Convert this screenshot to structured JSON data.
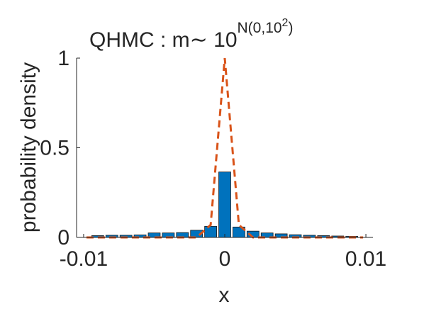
{
  "chart_data": {
    "type": "bar",
    "title_parts": {
      "main": "QHMC : m",
      "tilde": "∼",
      "base": " 10",
      "exponent": "N(0,10",
      "exponent_sup": "2",
      "exponent_close": ")"
    },
    "xlabel": "x",
    "ylabel": "probability density",
    "xlim": [
      -0.0105,
      0.0105
    ],
    "ylim": [
      0,
      1
    ],
    "x_ticks": [
      {
        "value": -0.01,
        "label": "-0.01"
      },
      {
        "value": 0,
        "label": "0"
      },
      {
        "value": 0.01,
        "label": "0.01"
      }
    ],
    "y_ticks": [
      {
        "value": 0,
        "label": "0"
      },
      {
        "value": 0.5,
        "label": "0.5"
      },
      {
        "value": 1,
        "label": "1"
      }
    ],
    "bar_width": 0.00085,
    "bar_color": "#0072BD",
    "bars_x": [
      -0.009,
      -0.008,
      -0.007,
      -0.006,
      -0.005,
      -0.004,
      -0.003,
      -0.002,
      -0.001,
      0,
      0.001,
      0.002,
      0.003,
      0.004,
      0.005,
      0.006,
      0.007,
      0.008,
      0.009
    ],
    "bars_y": [
      0.01,
      0.012,
      0.012,
      0.014,
      0.025,
      0.025,
      0.027,
      0.04,
      0.062,
      0.365,
      0.058,
      0.035,
      0.025,
      0.02,
      0.015,
      0.012,
      0.01,
      0.008,
      0.006
    ],
    "density_line": {
      "color": "#D95319",
      "style": "dashed",
      "x": [
        -0.0098,
        -0.002,
        -0.001,
        0,
        0.001,
        0.002,
        0.0098
      ],
      "y": [
        0,
        0,
        0.07,
        1.0,
        0.07,
        0,
        0
      ]
    }
  }
}
